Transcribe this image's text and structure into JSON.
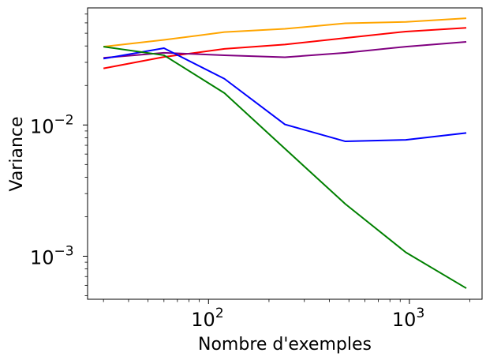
{
  "chart_data": {
    "type": "line",
    "title": "",
    "xlabel": "Nombre d'exemples",
    "ylabel": "Variance",
    "xscale": "log",
    "yscale": "log",
    "xlim": [
      25,
      2300
    ],
    "ylim": [
      0.00047,
      0.078
    ],
    "grid": false,
    "legend": "none",
    "x_ticks": [
      {
        "value": 100,
        "base": "10",
        "exp": "2"
      },
      {
        "value": 1000,
        "base": "10",
        "exp": "3"
      }
    ],
    "y_ticks": [
      {
        "value": 0.001,
        "base": "10",
        "exp": "−3"
      },
      {
        "value": 0.01,
        "base": "10",
        "exp": "−2"
      }
    ],
    "x": [
      30,
      60,
      120,
      240,
      480,
      960,
      1920
    ],
    "series": [
      {
        "color": "#ffa500",
        "values": [
          0.0395,
          0.0445,
          0.051,
          0.054,
          0.0595,
          0.061,
          0.065
        ]
      },
      {
        "color": "#ff0000",
        "values": [
          0.027,
          0.033,
          0.038,
          0.041,
          0.046,
          0.0515,
          0.055
        ]
      },
      {
        "color": "#800080",
        "values": [
          0.0325,
          0.0355,
          0.034,
          0.0328,
          0.0355,
          0.0395,
          0.043
        ]
      },
      {
        "color": "#0000ff",
        "values": [
          0.032,
          0.0385,
          0.0225,
          0.0101,
          0.0075,
          0.0077,
          0.0087
        ]
      },
      {
        "color": "#008000",
        "values": [
          0.0395,
          0.034,
          0.0175,
          0.0066,
          0.0025,
          0.00107,
          0.00057
        ]
      }
    ]
  }
}
